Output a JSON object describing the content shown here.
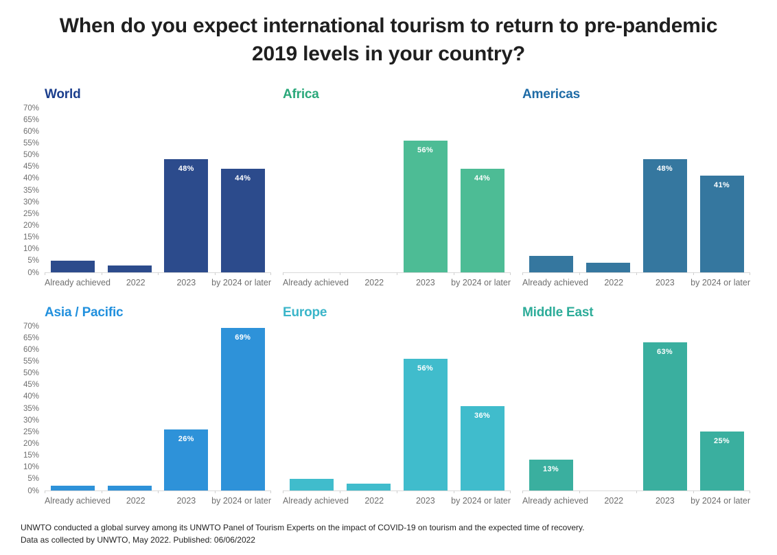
{
  "title": "When do you expect international tourism to return to pre-pandemic 2019 levels in your country?",
  "footer": {
    "line1": "UNWTO conducted a global survey among its UNWTO Panel of Tourism Experts on the impact of COVID-19 on tourism and the expected time of recovery.",
    "line2": "Data as collected by UNWTO, May 2022. Published: 06/06/2022"
  },
  "colors": {
    "page_background": "#ffffff",
    "main_title_text": "#1f1f1f",
    "axis_text": "#6e6e6e",
    "axis_line": "#d9d9d9",
    "bar_label_text": "#ffffff",
    "footer_text": "#222222"
  },
  "chart_data": {
    "type": "bar",
    "categories": [
      "Already achieved",
      "2022",
      "2023",
      "by 2024 or later"
    ],
    "ylim": [
      0,
      70
    ],
    "y_tick_step": 5,
    "y_tick_labels": [
      "70%",
      "65%",
      "60%",
      "55%",
      "50%",
      "45%",
      "40%",
      "35%",
      "30%",
      "25%",
      "20%",
      "15%",
      "10%",
      "5%",
      "0%"
    ],
    "grid": "off",
    "legend": "none",
    "charts": [
      {
        "name": "World",
        "title_color": "#1b3e8d",
        "bar_color": "#2c4b8c",
        "show_y_axis": true,
        "values": [
          5,
          3,
          48,
          44
        ],
        "bar_labels": [
          "",
          "",
          "48%",
          "44%"
        ]
      },
      {
        "name": "Africa",
        "title_color": "#2aa87a",
        "bar_color": "#4dbc95",
        "show_y_axis": false,
        "values": [
          0,
          0,
          56,
          44
        ],
        "bar_labels": [
          "",
          "",
          "56%",
          "44%"
        ]
      },
      {
        "name": "Americas",
        "title_color": "#1e6ba6",
        "bar_color": "#35779f",
        "show_y_axis": false,
        "values": [
          7,
          4,
          48,
          41
        ],
        "bar_labels": [
          "",
          "",
          "48%",
          "41%"
        ]
      },
      {
        "name": "Asia / Pacific",
        "title_color": "#2190dd",
        "bar_color": "#2e92d9",
        "show_y_axis": true,
        "values": [
          2,
          2,
          26,
          69
        ],
        "bar_labels": [
          "",
          "",
          "26%",
          "69%"
        ]
      },
      {
        "name": "Europe",
        "title_color": "#3ab5c9",
        "bar_color": "#40bccc",
        "show_y_axis": false,
        "values": [
          5,
          3,
          56,
          36
        ],
        "bar_labels": [
          "",
          "",
          "56%",
          "36%"
        ]
      },
      {
        "name": "Middle East",
        "title_color": "#2dac99",
        "bar_color": "#3aaf9f",
        "show_y_axis": false,
        "values": [
          13,
          0,
          63,
          25
        ],
        "bar_labels": [
          "13%",
          "",
          "63%",
          "25%"
        ]
      }
    ]
  }
}
